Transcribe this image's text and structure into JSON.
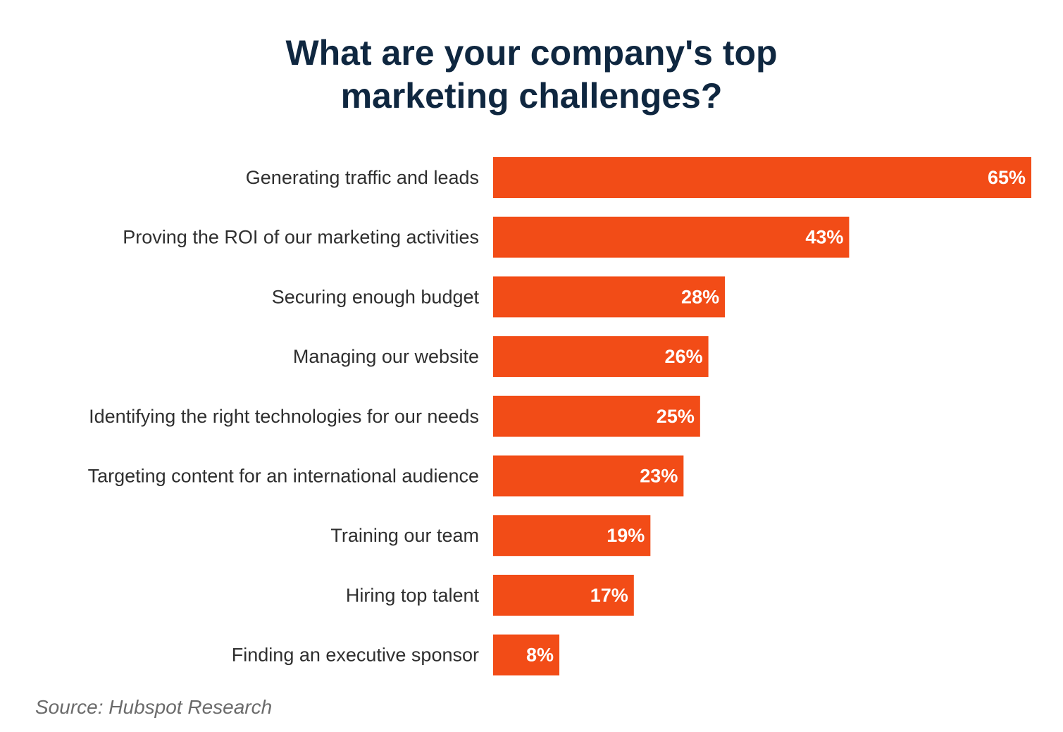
{
  "chart_data": {
    "type": "bar",
    "orientation": "horizontal",
    "title": "What are your company's top marketing challenges?",
    "title_lines": [
      "What are your company's top",
      "marketing challenges?"
    ],
    "categories": [
      "Generating traffic and leads",
      "Proving the ROI of our marketing activities",
      "Securing enough budget",
      "Managing our website",
      "Identifying the right technologies for our needs",
      "Targeting content for an international audience",
      "Training our team",
      "Hiring top talent",
      "Finding an executive sponsor"
    ],
    "values": [
      65,
      43,
      28,
      26,
      25,
      23,
      19,
      17,
      8
    ],
    "value_labels": [
      "65%",
      "43%",
      "28%",
      "26%",
      "25%",
      "23%",
      "19%",
      "17%",
      "8%"
    ],
    "unit": "%",
    "xlim": [
      0,
      65
    ],
    "grid": false,
    "legend": "none",
    "bar_color": "#f24c17",
    "title_color": "#0f2740",
    "source": "Source: Hubspot Research"
  }
}
